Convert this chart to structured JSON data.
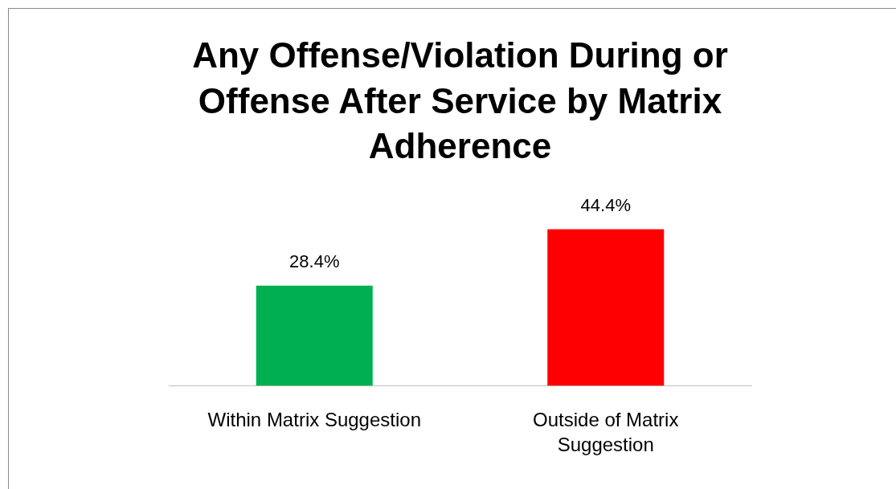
{
  "chart_data": {
    "type": "bar",
    "title": "Any Offense/Violation During or Offense After Service by Matrix Adherence",
    "categories": [
      "Within Matrix Suggestion",
      "Outside of Matrix Suggestion"
    ],
    "values": [
      28.4,
      44.4
    ],
    "colors": [
      "#00b050",
      "#ff0000"
    ],
    "value_labels": [
      "28.4%",
      "44.4%"
    ]
  }
}
